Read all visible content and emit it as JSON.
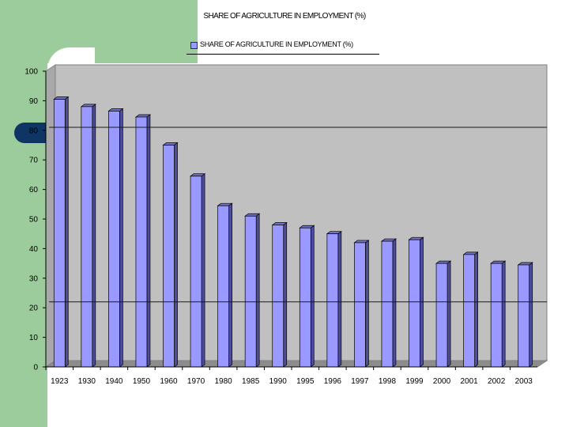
{
  "chart_data": {
    "type": "bar",
    "title": "SHARE OF AGRICULTURE IN EMPLOYMENT (%)",
    "legend": "SHARE OF AGRICULTURE IN EMPLOYMENT (%)",
    "legend_position": "top",
    "categories": [
      "1923",
      "1930",
      "1940",
      "1950",
      "1960",
      "1970",
      "1980",
      "1985",
      "1990",
      "1995",
      "1996",
      "1997",
      "1998",
      "1999",
      "2000",
      "2001",
      "2002",
      "2003"
    ],
    "series": [
      {
        "name": "SHARE OF AGRICULTURE IN EMPLOYMENT (%)",
        "values": [
          90.5,
          88,
          86.5,
          84.5,
          75,
          64.5,
          54.5,
          51,
          48,
          47,
          45,
          42,
          42.5,
          43,
          35,
          38,
          35,
          34.5
        ]
      }
    ],
    "ylim": [
      0,
      100
    ],
    "yticks": [
      0,
      10,
      20,
      30,
      40,
      50,
      60,
      70,
      80,
      90,
      100
    ],
    "xlabel": "",
    "ylabel": "",
    "grid": false,
    "bar_color": "#9999ff",
    "plot_background": "#c0c0c0"
  }
}
